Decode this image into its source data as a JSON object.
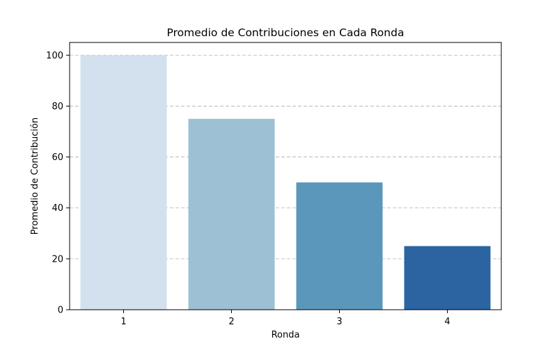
{
  "chart_data": {
    "type": "bar",
    "title": "Promedio de Contribuciones en Cada Ronda",
    "xlabel": "Ronda",
    "ylabel": "Promedio de Contribución",
    "categories": [
      "1",
      "2",
      "3",
      "4"
    ],
    "values": [
      100,
      75,
      50,
      25
    ],
    "colors": [
      "#d3e1ee",
      "#9dc0d4",
      "#5b96bb",
      "#2b64a0"
    ],
    "ylim": [
      0,
      105
    ],
    "yticks": [
      0,
      20,
      40,
      60,
      80,
      100
    ],
    "grid": "y-dashed",
    "legend": "none"
  }
}
